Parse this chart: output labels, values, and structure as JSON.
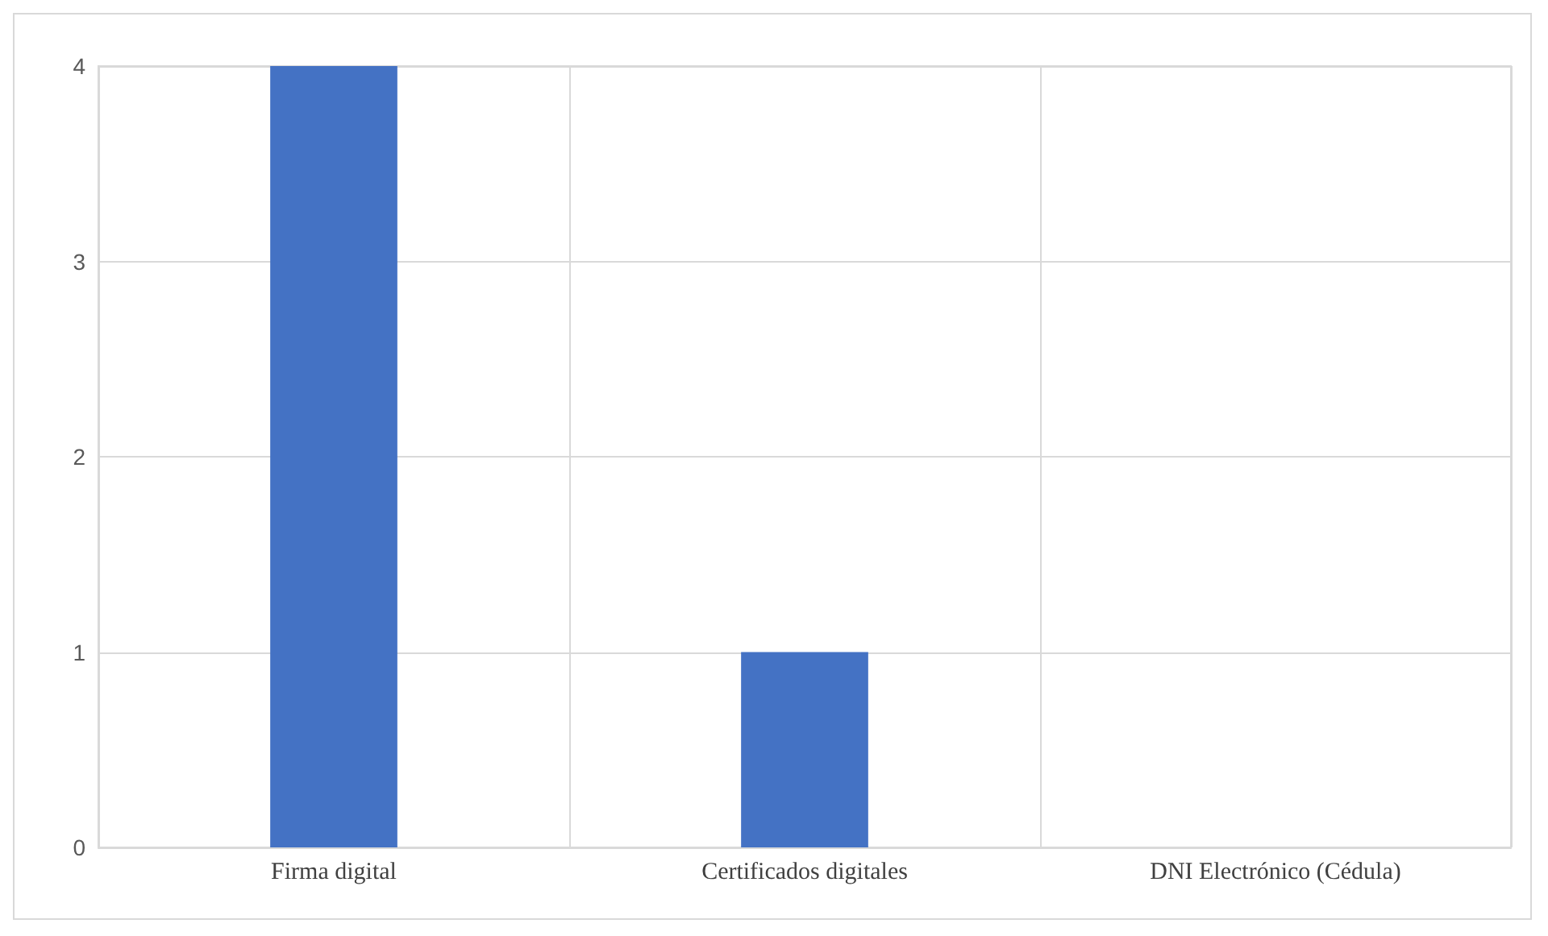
{
  "chart_data": {
    "type": "bar",
    "categories": [
      "Firma digital",
      "Certificados digitales",
      "DNI Electrónico (Cédula)"
    ],
    "values": [
      4,
      1,
      0
    ],
    "color": "#4472c4",
    "ylim": [
      0,
      4
    ],
    "yticks": [
      0,
      1,
      2,
      3,
      4
    ],
    "grid": true
  }
}
